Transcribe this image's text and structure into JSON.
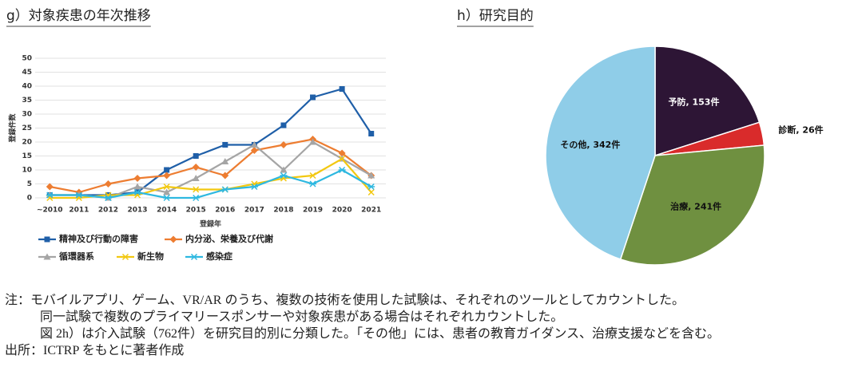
{
  "chart_data": [
    {
      "type": "line",
      "title": "g）対象疾患の年次推移",
      "y_label": "登録件数",
      "x_label": "登録年",
      "categories": [
        "~2010",
        "2011",
        "2012",
        "2013",
        "2014",
        "2015",
        "2016",
        "2017",
        "2018",
        "2019",
        "2020",
        "2021"
      ],
      "ylim": [
        0,
        50
      ],
      "yticks": [
        0,
        5,
        10,
        15,
        20,
        25,
        30,
        35,
        40,
        45,
        50
      ],
      "grid": true,
      "series": [
        {
          "name": "精神及び行動の障害",
          "color": "#1f5fa8",
          "marker": "square",
          "values": [
            1,
            1,
            1,
            2,
            10,
            15,
            19,
            19,
            26,
            36,
            39,
            23
          ]
        },
        {
          "name": "内分泌、栄養及び代謝",
          "color": "#ed7d31",
          "marker": "diamond",
          "values": [
            4,
            2,
            5,
            7,
            8,
            11,
            8,
            17,
            19,
            21,
            16,
            8
          ]
        },
        {
          "name": "循環器系",
          "color": "#a5a5a5",
          "marker": "triangle",
          "values": [
            1,
            1,
            0,
            4,
            2,
            7,
            13,
            19,
            10,
            20,
            14,
            8
          ]
        },
        {
          "name": "新生物",
          "color": "#f2c811",
          "marker": "x",
          "values": [
            0,
            0,
            1,
            1,
            4,
            3,
            3,
            5,
            7,
            8,
            14,
            2
          ]
        },
        {
          "name": "感染症",
          "color": "#2eb8e0",
          "marker": "star",
          "values": [
            1,
            1,
            0,
            2,
            0,
            0,
            3,
            4,
            8,
            5,
            10,
            4
          ]
        }
      ]
    },
    {
      "type": "pie",
      "title": "h）研究目的",
      "values": [
        153,
        26,
        241,
        342
      ],
      "value_labels": [
        "予防, 153件",
        "診断, 26件",
        "治療, 241件",
        "その他, 342件"
      ],
      "colors": [
        "#2d1535",
        "#d92b2b",
        "#6f9040",
        "#8fcde8"
      ]
    }
  ],
  "notes": {
    "lines": [
      "注：モバイルアプリ、ゲーム、VR/AR のうち、複数の技術を使用した試験は、それぞれのツールとしてカウントした。",
      "同一試験で複数のプライマリースポンサーや対象疾患がある場合はそれぞれカウントした。",
      "図 2h）は介入試験（762件）を研究目的別に分類した。「その他」には、患者の教育ガイダンス、治療支援などを含む。"
    ],
    "source": "出所：ICTRP をもとに著者作成"
  }
}
